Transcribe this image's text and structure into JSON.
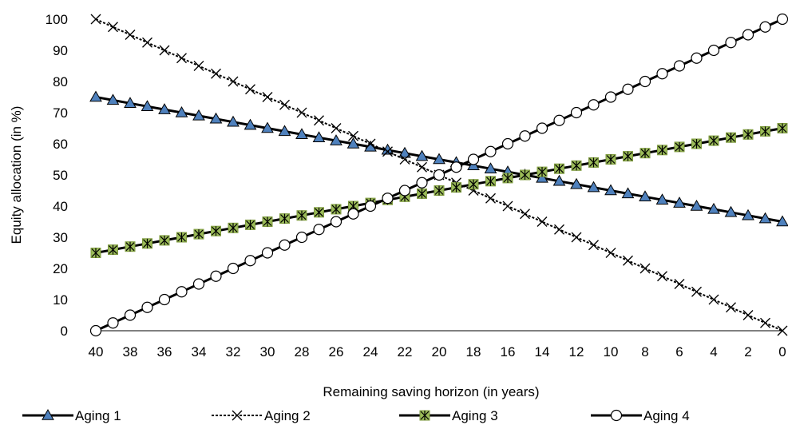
{
  "chart_data": {
    "type": "line",
    "title": "",
    "xlabel": "Remaining saving horizon (in years)",
    "ylabel": "Equity allocation (in %)",
    "x": [
      40,
      39,
      38,
      37,
      36,
      35,
      34,
      33,
      32,
      31,
      30,
      29,
      28,
      27,
      26,
      25,
      24,
      23,
      22,
      21,
      20,
      19,
      18,
      17,
      16,
      15,
      14,
      13,
      12,
      11,
      10,
      9,
      8,
      7,
      6,
      5,
      4,
      3,
      2,
      1,
      0
    ],
    "x_reversed": true,
    "xlim": [
      40,
      0
    ],
    "xticks": [
      "40",
      "38",
      "36",
      "34",
      "32",
      "30",
      "28",
      "26",
      "24",
      "22",
      "20",
      "18",
      "16",
      "14",
      "12",
      "10",
      "8",
      "6",
      "4",
      "2",
      "0"
    ],
    "ylim": [
      0,
      100
    ],
    "yticks": [
      "0",
      "10",
      "20",
      "30",
      "40",
      "50",
      "60",
      "70",
      "80",
      "90",
      "100"
    ],
    "grid": false,
    "legend_position": "bottom",
    "series": [
      {
        "name": "Aging 1",
        "marker": "triangle",
        "line_color": "#000000",
        "marker_fill": "#4f81bd",
        "line_style": "solid",
        "values": [
          75,
          74,
          73,
          72,
          71,
          70,
          69,
          68,
          67,
          66,
          65,
          64,
          63,
          62,
          61,
          60,
          59,
          58,
          57,
          56,
          55,
          54,
          53,
          52,
          51,
          50,
          49,
          48,
          47,
          46,
          45,
          44,
          43,
          42,
          41,
          40,
          39,
          38,
          37,
          36,
          35
        ]
      },
      {
        "name": "Aging 2",
        "marker": "x",
        "line_color": "#000000",
        "marker_fill": "#000000",
        "line_style": "dashed",
        "values": [
          100,
          97.5,
          95,
          92.5,
          90,
          87.5,
          85,
          82.5,
          80,
          77.5,
          75,
          72.5,
          70,
          67.5,
          65,
          62.5,
          60,
          57.5,
          55,
          52.5,
          50,
          47.5,
          45,
          42.5,
          40,
          37.5,
          35,
          32.5,
          30,
          27.5,
          25,
          22.5,
          20,
          17.5,
          15,
          12.5,
          10,
          7.5,
          5,
          2.5,
          0
        ]
      },
      {
        "name": "Aging 3",
        "marker": "asterisk-square",
        "line_color": "#000000",
        "marker_fill": "#9bbb59",
        "line_style": "solid",
        "values": [
          25,
          26,
          27,
          28,
          29,
          30,
          31,
          32,
          33,
          34,
          35,
          36,
          37,
          38,
          39,
          40,
          41,
          42,
          43,
          44,
          45,
          46,
          47,
          48,
          49,
          50,
          51,
          52,
          53,
          54,
          55,
          56,
          57,
          58,
          59,
          60,
          61,
          62,
          63,
          64,
          65
        ]
      },
      {
        "name": "Aging 4",
        "marker": "circle",
        "line_color": "#000000",
        "marker_fill": "#ffffff",
        "line_style": "solid",
        "values": [
          0,
          2.5,
          5,
          7.5,
          10,
          12.5,
          15,
          17.5,
          20,
          22.5,
          25,
          27.5,
          30,
          32.5,
          35,
          37.5,
          40,
          42.5,
          45,
          47.5,
          50,
          52.5,
          55,
          57.5,
          60,
          62.5,
          65,
          67.5,
          70,
          72.5,
          75,
          77.5,
          80,
          82.5,
          85,
          87.5,
          90,
          92.5,
          95,
          97.5,
          100
        ]
      }
    ]
  }
}
